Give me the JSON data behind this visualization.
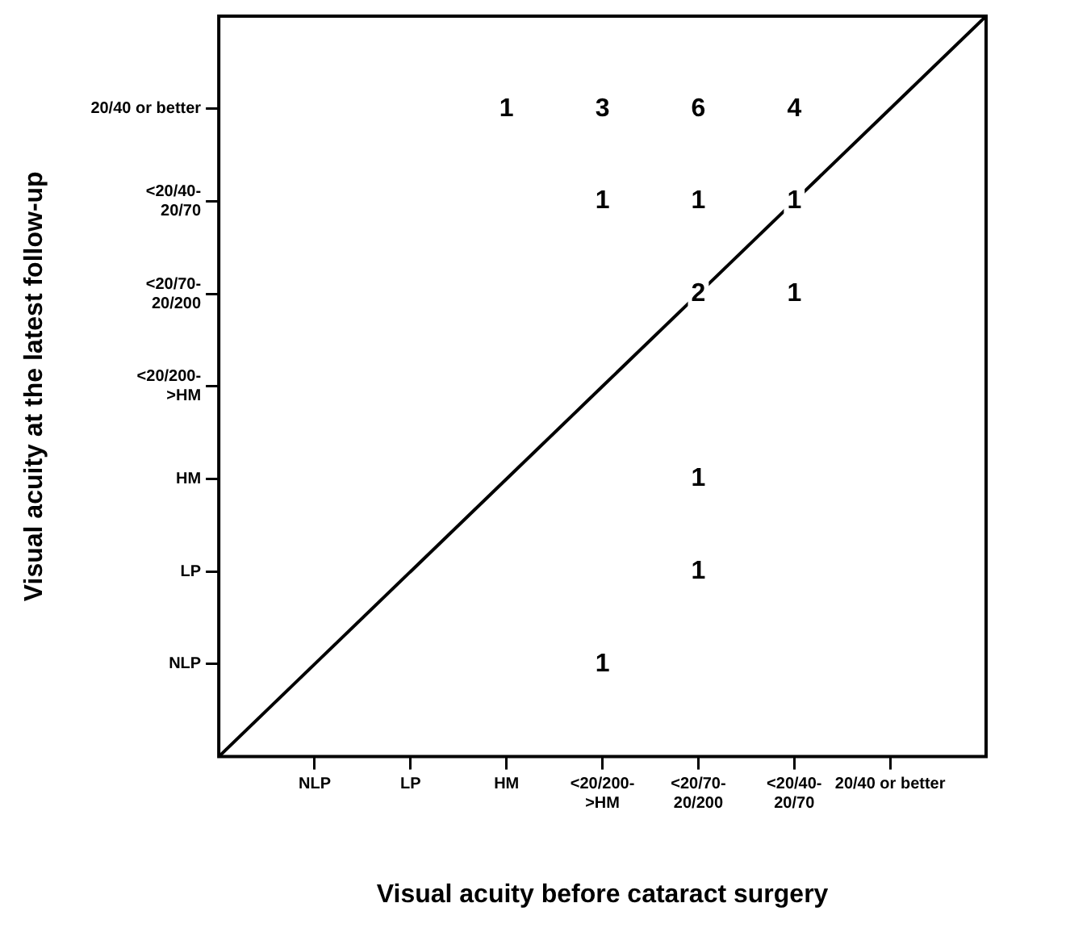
{
  "chart_data": {
    "type": "heatmap",
    "xlabel": "Visual acuity before cataract surgery",
    "ylabel": "Visual acuity at the latest follow-up",
    "categories": [
      "NLP",
      "LP",
      "HM",
      "<20/200->HM",
      "<20/70-20/200",
      "<20/40-20/70",
      "20/40 or better"
    ],
    "y_categories": [
      "20/40 or better",
      "<20/40-20/70",
      "<20/70-20/200",
      "<20/200->HM",
      "HM",
      "LP",
      "NLP"
    ],
    "cells": [
      [
        null,
        null,
        1,
        3,
        6,
        4,
        null
      ],
      [
        null,
        null,
        null,
        1,
        1,
        1,
        null
      ],
      [
        null,
        null,
        null,
        null,
        2,
        1,
        null
      ],
      [
        null,
        null,
        null,
        null,
        null,
        null,
        null
      ],
      [
        null,
        null,
        null,
        null,
        1,
        null,
        null
      ],
      [
        null,
        null,
        null,
        null,
        1,
        null,
        null
      ],
      [
        null,
        null,
        null,
        1,
        null,
        null,
        null
      ]
    ],
    "data_labels": true,
    "series": [
      {
        "type": "line",
        "color": "#000000",
        "values": [
          6,
          5,
          4,
          3,
          2,
          1,
          0
        ],
        "value_labels": [
          null,
          null,
          null,
          null,
          null,
          null,
          null
        ]
      }
    ]
  }
}
